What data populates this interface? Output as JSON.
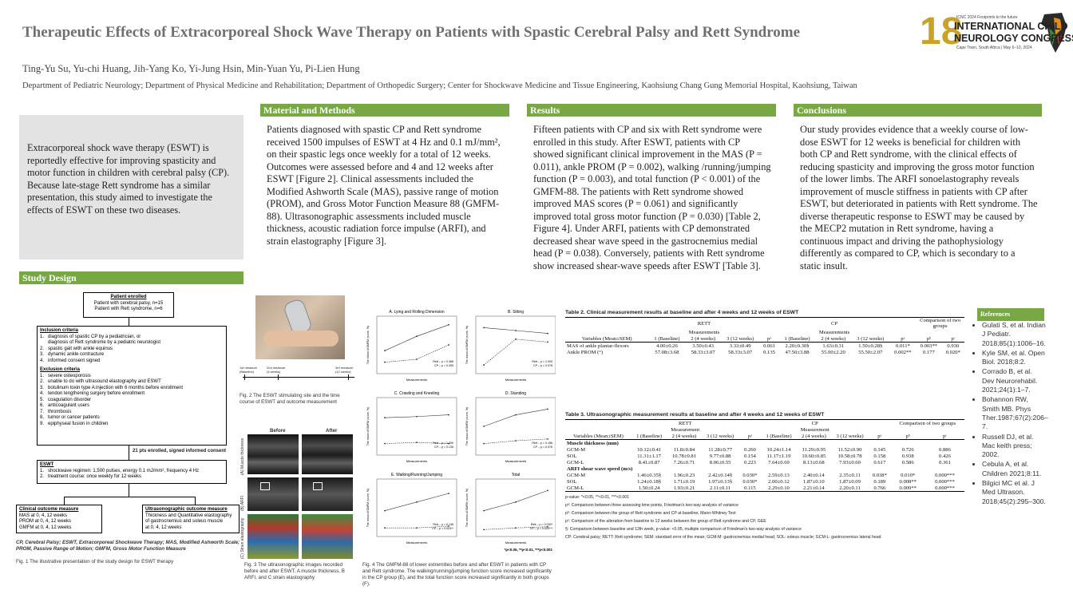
{
  "title": "Therapeutic Effects of Extracorporeal Shock Wave Therapy on Patients with Spastic Cerebral Palsy and Rett Syndrome",
  "authors": "Ting-Yu Su, Yu-chi Huang, Jih-Yang Ko, Yi-Jung Hsin, Min-Yuan Yu, Pi-Lien Hung",
  "affiliations": "Department of Pediatric Neurology; Department of Physical Medicine and Rehabilitation; Department of Orthopedic Surgery; Center for Shockwave Medicine and Tissue Engineering, Kaohsiung Chang Gung Memorial Hospital, Kaohsiung, Taiwan",
  "logo": {
    "number": "18",
    "line1": "ICNC 2024 Footprints to the future",
    "line2": "INTERNATIONAL CHILD",
    "line3": "NEUROLOGY CONGRESS",
    "line4": "Cape Town, South Africa | May 6–10, 2024"
  },
  "intro": "Extracorporeal shock wave therapy (ESWT) is reportedly effective for improving spasticity and motor function in children with cerebral palsy (CP). Because late-stage Rett syndrome has a similar presentation, this study aimed to investigate the effects of ESWT on these two diseases.",
  "sections": {
    "methods": {
      "header": "Material and Methods",
      "text": "Patients diagnosed with spastic CP and Rett syndrome received 1500 impulses of ESWT at 4 Hz and 0.1 mJ/mm², on their spastic legs once weekly for a total of 12 weeks. Outcomes were assessed before and 4 and 12 weeks after ESWT [Figure 2]. Clinical assessments included the Modified Ashworth Scale (MAS), passive range of motion (PROM), and Gross Motor Function Measure 88 (GMFM-88). Ultrasonographic assessments included muscle thickness, acoustic radiation force impulse (ARFI), and strain elastography [Figure 3]."
    },
    "results": {
      "header": "Results",
      "text": "Fifteen patients with CP and six with Rett syndrome were enrolled in this study. After ESWT, patients with CP showed significant clinical improvement in the MAS (P = 0.011), ankle PROM (P = 0.002), walking /running/jumping function (P = 0.003), and total function (P < 0.001) of the GMFM-88. The patients with Rett syndrome showed improved MAS scores (P = 0.061) and significantly improved total gross motor function (P = 0.030) [Table 2, Figure 4]. Under ARFI, patients with CP demonstrated decreased shear wave speed in the gastrocnemius medial head (P = 0.038). Conversely, patients with Rett syndrome show increased shear-wave speeds after ESWT [Table 3]."
    },
    "conclusions": {
      "header": "Conclusions",
      "text": "Our study provides evidence that a weekly course of low-dose ESWT for 12 weeks is beneficial for children with both CP and Rett syndrome, with the clinical effects of reducing spasticity and improving the gross motor function of the lower limbs. The ARFI sonoelastography reveals improvement of muscle stiffness in patients with CP after ESWT, but deteriorated in patients with Rett syndrome. The diverse therapeutic response to ESWT may be caused by the MECP2 mutation in Rett syndrome, having a continuous impact and driving the pathophysiology differently as compared to CP, which is secondary to a static insult."
    },
    "study_design": {
      "header": "Study Design"
    }
  },
  "flow": {
    "enrolled_title": "Patient enrolled",
    "enrolled_1": "Patient with cerebral palsy, n=15",
    "enrolled_2": "Patient with Rett syndrome, n=6",
    "inclusion_title": "Inclusion criteria",
    "inclusion": [
      "1.   diagnosis of spastic CP by a pediatrician, or",
      "      diagnosis of Rett syndrome by a pediatric neurologist",
      "2.   spastic gait with ankle equinus",
      "3.   dynamic ankle contracture",
      "4.   informed consent signed"
    ],
    "exclusion_title": "Exclusion criteria",
    "exclusion": [
      "1.   severe osteoporosis",
      "2.   unable to do with ultrasound elastography and ESWT",
      "3.   botulinum toxin type A injection with 6 months before enrollment",
      "4.   tendon lengthening surgery before enrollment",
      "5.   coagulation disorder",
      "6.   anticoagulant users",
      "7.   thrombosis",
      "8.   tumor or cancer patients",
      "9.   epiphyseal fusion in children"
    ],
    "enrolled_signed": "21 pts enrolled, signed informed consent",
    "eswt_title": "ESWT",
    "eswt": [
      "1.   shockwave regimen: 1,500 pulses, energy 0.1 mJ/mm², frequency 4 Hz",
      "2.   treatment course: once weekly for 12 weeks"
    ],
    "clinical_title": "Clinical outcome measure",
    "clinical": [
      "MAS at 0, 4, 12 weeks",
      "PROM at 0, 4, 12 weeks",
      "GMFM at 0, 4, 12 weeks"
    ],
    "us_title": "Ultrasonographic outcome measure",
    "us": [
      "Thickness and Quantitative elastography",
      "of gastrocnemius and soleus muscle",
      "at 0, 4, 12 weeks"
    ],
    "abbrev": "CP, Cerebral Palsy; ESWT, Extracorporeal Shockwave Therapy; MAS, Modified Ashworth Scale; PROM, Passive Range of Motion; GMFM, Gross Motor Function Measure",
    "fig1_caption": "Fig. 1 The illustrative presentation of the study design for ESWT therapy"
  },
  "fig2": {
    "timeline": [
      "1st measure (Baseline)",
      "2nd measure (4 weeks)",
      "3rd measure (12 weeks)"
    ],
    "caption": "Fig. 2 The ESWT stimulating site and the time course of ESWT and outcome measurement"
  },
  "fig3": {
    "before": "Before",
    "after": "After",
    "rows": [
      "(A) Muscle thickness",
      "(B) ARFI",
      "(C) Strain elastography"
    ],
    "caption": "Fig. 3 The ultrasonographic images recorded before and after ESWT. A muscle thickness, B ARFI, and C strain elastography"
  },
  "fig4": {
    "panels": [
      {
        "title": "A. Lying and Rolling Dimension",
        "stat1": "Rett – p = 0.368",
        "stat2": "CP – p = 0.305"
      },
      {
        "title": "B. Sitting",
        "stat1": "Rett – p = 1.000",
        "stat2": "CP – p = 0.078"
      },
      {
        "title": "C. Crawling and Kneeling",
        "stat1": "Rett – p = 1.000",
        "stat2": "CP – p = 0.135"
      },
      {
        "title": "D. Standing",
        "stat1": "Rett – p = 0.186",
        "stat2": "CP – p = 0.076"
      },
      {
        "title": "E. Walking/Running/Jumping",
        "stat1": "Rett – p = 0.136",
        "stat2": "CP – p = 0.003**"
      },
      {
        "title": "Total",
        "stat1": "Rett – p = 0.030*",
        "stat2": "CP – p = 0.000***"
      }
    ],
    "xlabel": "Measurements",
    "ylabel": "The mean of GMFM (score, %)",
    "sig": "*p<0.05, **p<0.01, ***p<0.001",
    "caption": "Fig. 4 The GMFM-88 of lower extremities before and after ESWT in patients with CP and Rett syndrome. The walking/running/jumping function score increased significantly in the CP group (E), and the total function score increased significantly in both groups (F)."
  },
  "table2": {
    "title": "Table 2. Clinical measurement results at baseline and after 4 weeks and 12 weeks of ESWT",
    "rett": "RETT",
    "cp": "CP",
    "meas": "Measurements",
    "comp": "Comparison of two groups",
    "cols": [
      "Variables (Mean±SEM)",
      "1 (Baseline)",
      "2 (4 weeks)",
      "3 (12 weeks)",
      "pᵃ",
      "1 (Baseline)",
      "2 (4 weeks)",
      "3 (12 weeks)",
      "pᵃ",
      "pᵇ",
      "pᶜ"
    ],
    "rows": [
      [
        "MAS of ankle plantar-flexors",
        "4.00±0.26",
        "3.50±0.43",
        "3.33±0.49",
        "0.061",
        "2.20±0.30§",
        "1.63±0.31",
        "1.50±0.28§",
        "0.011*",
        "0.003**",
        "0.930"
      ],
      [
        "Ankle PROM (°)",
        "57.08±3.68",
        "58.33±3.07",
        "58.33±3.07",
        "0.135",
        "47.50±3.88",
        "55.00±2.20",
        "55.50±2.07",
        "0.002**",
        "0.177",
        "0.020*"
      ]
    ]
  },
  "table3": {
    "title": "Table 3. Ultrasonographic measurement results at baseline and after 4 weeks and 12 weeks of ESWT",
    "rett": "RETT",
    "cp": "CP",
    "meas": "Measurement",
    "comp": "Comparison of two groups",
    "muscle": "Muscle thickness (mm)",
    "arfi": "ARFI shear wave speed (m/s)",
    "rows_mt": [
      [
        "GCM-M",
        "10.12±0.41",
        "11.8±0.84",
        "11.28±0.77",
        "0.260",
        "10.24±1.14",
        "11.29±0.95",
        "11.52±0.90",
        "0.145",
        "0.726",
        "0.886"
      ],
      [
        "SOL",
        "11.31±1.17",
        "10.78±0.81",
        "9.77±0.88",
        "0.154",
        "11.17±1.19",
        "10.60±0.85",
        "10.58±0.78",
        "0.158",
        "0.938",
        "0.426"
      ],
      [
        "GCM-L",
        "8.41±0.87",
        "7.26±0.71",
        "8.06±0.55",
        "0.223",
        "7.64±0.69",
        "8.13±0.68",
        "7.93±0.60",
        "0.617",
        "0.586",
        "0.361"
      ]
    ],
    "rows_arfi": [
      [
        "GCM-M",
        "1.46±0.35§",
        "1.96±0.23",
        "2.42±0.14§",
        "0.030*",
        "2.59±0.13",
        "2.40±0.14",
        "2.35±0.11",
        "0.038*",
        "0.010*",
        "0.000***"
      ],
      [
        "SOL",
        "1.24±0.18§",
        "1.71±0.19",
        "1.97±0.13§",
        "0.030*",
        "2.00±0.12",
        "1.87±0.10",
        "1.87±0.09",
        "0.189",
        "0.008**",
        "0.000***"
      ],
      [
        "GCM-L",
        "1.50±0.24",
        "1.93±0.21",
        "2.11±0.11",
        "0.115",
        "2.29±0.10",
        "2.21±0.14",
        "2.20±0.11",
        "0.766",
        "0.009**",
        "0.000***"
      ]
    ],
    "notes": [
      "p-value: *<0.05, **<0.01, ***<0.001",
      "pᵃ: Comparison between three assessing time points, Friedman's two-way analysis of variance",
      "pᵇ: Comparison between the group of Rett syndrome and CP at baseline, Mann-Whitney Test",
      "pᶜ: Comparison of the alteration from baseline to 12 weeks between the group of Rett syndrome and CP, GEE",
      "§: Comparison between baseline and 12th week, p-value: <0.05, multiple comparison of Friedman's two-way analysis of variance",
      "CP: Cerebral palsy; RETT: Rett syndrome; SEM: standard error of the mean; GCM-M: gastrocnemius medial head; SOL: soleus muscle; GCM-L: gastrocnemius lateral head"
    ]
  },
  "references": {
    "header": "References",
    "items": [
      "Gulati S, et al. Indian J Pediatr. 2018;85(1):1006–16.",
      "Kyle SM, et al. Open Biol. 2018;8:2.",
      "Corrado B, et al. Dev Neurorehabil. 2021;24(1):1–7.",
      "Bohannon RW, Smith MB. Phys Ther.1987;67(2):206–7.",
      "Russell DJ, et al. Mac keith press; 2002.",
      "Cebula A, et al. Children 2021;8:11.",
      "Bilgici MC et al. J Med Ultrason. 2018;45(2):295–300."
    ]
  },
  "colors": {
    "accent": "#77a843",
    "intro_bg": "#e3e3e3",
    "title": "#6f6f6f"
  }
}
